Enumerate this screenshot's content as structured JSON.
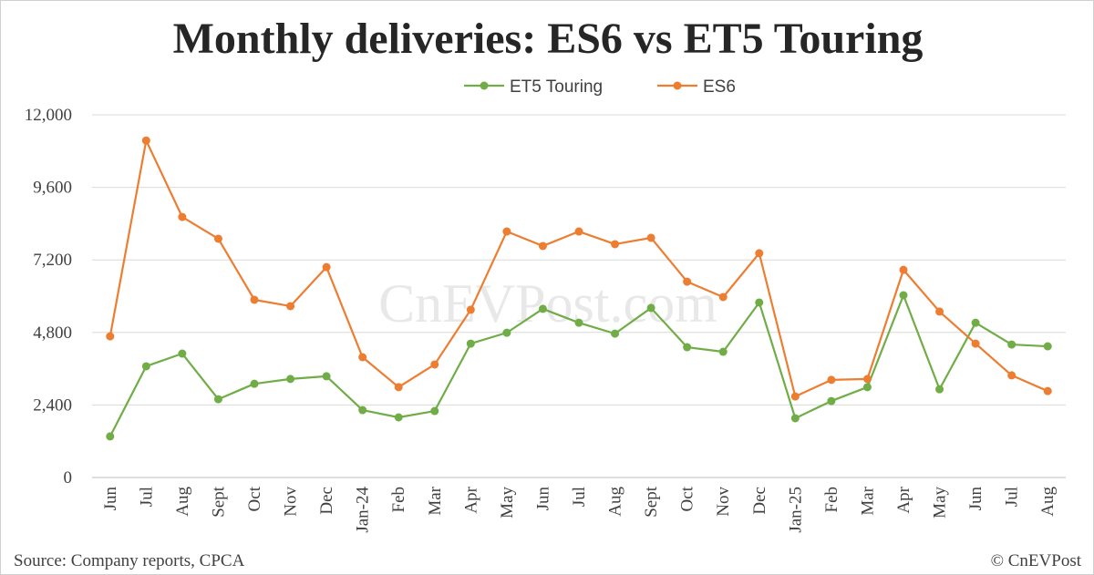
{
  "chart_data": {
    "type": "line",
    "title": "Monthly deliveries: ES6 vs ET5 Touring",
    "xlabel": "",
    "ylabel": "",
    "ylim": [
      0,
      12000
    ],
    "yticks": [
      "0",
      "2,400",
      "4,800",
      "7,200",
      "9,600",
      "12,000"
    ],
    "ytick_values": [
      0,
      2400,
      4800,
      7200,
      9600,
      12000
    ],
    "grid": true,
    "legend_position": "top",
    "categories": [
      "Jun",
      "Jul",
      "Aug",
      "Sept",
      "Oct",
      "Nov",
      "Dec",
      "Jan-24",
      "Feb",
      "Mar",
      "Apr",
      "May",
      "Jun",
      "Jul",
      "Aug",
      "Sept",
      "Oct",
      "Nov",
      "Dec",
      "Jan-25",
      "Feb",
      "Mar",
      "Apr",
      "May",
      "Jun",
      "Jul",
      "Aug"
    ],
    "series": [
      {
        "name": "ET5 Touring",
        "color": "#70ad47",
        "values": [
          1360,
          3680,
          4100,
          2590,
          3100,
          3260,
          3350,
          2230,
          1990,
          2200,
          4430,
          4790,
          5580,
          5120,
          4760,
          5610,
          4310,
          4160,
          5790,
          1960,
          2530,
          2990,
          6030,
          2920,
          5120,
          4400,
          4340
        ]
      },
      {
        "name": "ES6",
        "color": "#ed7d31",
        "values": [
          4670,
          11150,
          8620,
          7900,
          5880,
          5670,
          6960,
          3980,
          2990,
          3740,
          5550,
          8140,
          7660,
          8140,
          7720,
          7930,
          6480,
          5970,
          7420,
          2680,
          3230,
          3260,
          6870,
          5490,
          4430,
          3380,
          2860
        ]
      }
    ]
  },
  "watermark": "CnEVPost.com",
  "footer": {
    "source": "Source: Company reports, CPCA",
    "copyright": "© CnEVPost"
  }
}
